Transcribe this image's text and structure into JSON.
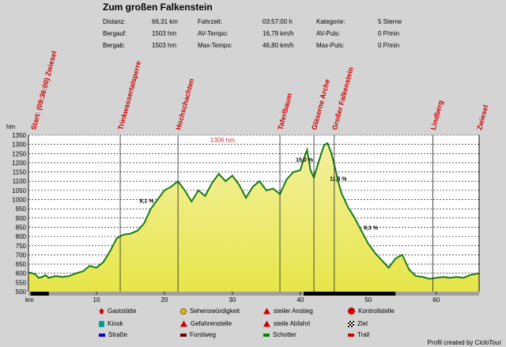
{
  "title": "Zum großen Falkenstein",
  "stats": [
    {
      "label": "Distanz:",
      "value": "66,31 km"
    },
    {
      "label": "Bergauf:",
      "value": "1503 hm"
    },
    {
      "label": "Bergab:",
      "value": "1503 hm"
    },
    {
      "label": "Fahrzeit:",
      "value": "03:57:00 h"
    },
    {
      "label": "AV-Tempo:",
      "value": "16,79 km/h"
    },
    {
      "label": "Max-Tempo:",
      "value": "46,80 km/h"
    },
    {
      "label": "Kategorie:",
      "value": "5 Sterne"
    },
    {
      "label": "AV-Puls:",
      "value": "0 P/min"
    },
    {
      "label": "Max-Puls:",
      "value": "0 P/min"
    }
  ],
  "chart_data": {
    "type": "area",
    "ylabel": "hm",
    "xlabel": "km",
    "ylim": [
      500,
      1350
    ],
    "xlim": [
      0,
      66.31
    ],
    "yticks": [
      500,
      550,
      600,
      650,
      700,
      750,
      800,
      850,
      900,
      950,
      1000,
      1050,
      1100,
      1150,
      1200,
      1250,
      1300,
      1350
    ],
    "xticks": [
      10,
      20,
      30,
      40,
      50,
      60
    ],
    "x": [
      0,
      1,
      1.5,
      2,
      2.5,
      3,
      3.5,
      4,
      5,
      6,
      7,
      8,
      9,
      10,
      11,
      12,
      13,
      14,
      15,
      16,
      17,
      18,
      19,
      20,
      21,
      22,
      23,
      24,
      25,
      26,
      27,
      28,
      29,
      30,
      31,
      32,
      33,
      34,
      35,
      36,
      37,
      38,
      39,
      40,
      40.5,
      41,
      41.5,
      42,
      42.5,
      43,
      43.5,
      44,
      44.5,
      45,
      45.5,
      46,
      46.5,
      47,
      48,
      49,
      50,
      51,
      52,
      53,
      54,
      55,
      56,
      57,
      58,
      59,
      60,
      61,
      62,
      63,
      64,
      65,
      66.31
    ],
    "y": [
      605,
      595,
      575,
      580,
      590,
      575,
      580,
      585,
      580,
      585,
      600,
      610,
      640,
      630,
      660,
      720,
      790,
      810,
      815,
      830,
      870,
      950,
      1000,
      1050,
      1070,
      1100,
      1050,
      990,
      1050,
      1020,
      1090,
      1140,
      1100,
      1130,
      1080,
      1010,
      1070,
      1100,
      1050,
      1060,
      1030,
      1110,
      1150,
      1160,
      1220,
      1270,
      1160,
      1120,
      1180,
      1240,
      1296,
      1306,
      1260,
      1190,
      1110,
      1040,
      1000,
      960,
      900,
      830,
      760,
      710,
      670,
      630,
      680,
      700,
      620,
      585,
      580,
      570,
      575,
      580,
      575,
      580,
      575,
      590,
      600
    ],
    "annotations": [
      {
        "x": 26.5,
        "y": 1306,
        "text": "1306 hm"
      },
      {
        "x": 40.5,
        "y": 1220,
        "text": "15,0 %"
      },
      {
        "x": 45.5,
        "y": 1115,
        "text": "11,5 %"
      },
      {
        "x": 17.5,
        "y": 995,
        "text": "9,1 %"
      },
      {
        "x": 50.5,
        "y": 850,
        "text": "8,3 %"
      }
    ],
    "waypoints": [
      {
        "x": 0,
        "label": "Start: (09:36:00) Zwiesel"
      },
      {
        "x": 13.5,
        "label": "Trinkwassertalsperre"
      },
      {
        "x": 22,
        "label": "Hochschachten"
      },
      {
        "x": 37,
        "label": "Taferlbaum"
      },
      {
        "x": 42,
        "label": "Gläserne Arche"
      },
      {
        "x": 45,
        "label": "Großer Falkenstein"
      },
      {
        "x": 59.5,
        "label": "Lindberg"
      },
      {
        "x": 66.31,
        "label": "Zwiesel"
      }
    ]
  },
  "legend": [
    {
      "label": "Gaststätte",
      "icon": "restaurant-icon",
      "color": "#cc0000"
    },
    {
      "label": "Kiosk",
      "icon": "kiosk-icon",
      "color": "#00a0a0"
    },
    {
      "label": "Straße",
      "icon": "road-swatch",
      "color": "#0000cc"
    },
    {
      "label": "Sehenswürdigkeit",
      "icon": "sight-icon",
      "color": "#e0c000"
    },
    {
      "label": "Gefahrenstelle",
      "icon": "danger-icon",
      "color": "#cc0000"
    },
    {
      "label": "Forstweg",
      "icon": "forest-road-swatch",
      "color": "#660000"
    },
    {
      "label": "steiler Anstieg",
      "icon": "steep-climb-icon",
      "color": "#cc0000"
    },
    {
      "label": "steile Abfahrt",
      "icon": "steep-descent-icon",
      "color": "#cc0000"
    },
    {
      "label": "Schotter",
      "icon": "gravel-swatch",
      "color": "#008800"
    },
    {
      "label": "Kontrollstelle",
      "icon": "checkpoint-icon",
      "color": "#cc0000"
    },
    {
      "label": "Ziel",
      "icon": "finish-flag-icon",
      "color": "#000000"
    },
    {
      "label": "Trail",
      "icon": "trail-swatch",
      "color": "#cc0000"
    }
  ],
  "credit": "Profil created by CicloTour"
}
